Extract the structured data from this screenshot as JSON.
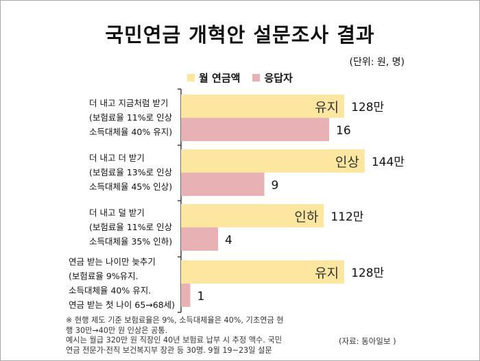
{
  "title": "국민연금 개혁안 설문조사 결과",
  "unit_note": "(단위: 원, 명)",
  "colors": {
    "pension": "#fde6a0",
    "respondents": "#e8b2b4",
    "axis": "#333333"
  },
  "legend": [
    {
      "label": "월 연금액",
      "color": "#fde6a0"
    },
    {
      "label": "응답자",
      "color": "#e8b2b4"
    }
  ],
  "chart_data": {
    "type": "bar",
    "orientation": "horizontal",
    "categories": [
      [
        "더 내고 지금처럼 받기",
        "(보험료율 11%로 인상",
        "소득대체율 40% 유지)"
      ],
      [
        "더 내고 더 받기",
        "(보험료율 13%로 인상",
        "소득대체율 45% 인상)"
      ],
      [
        "더 내고 덜 받기",
        "(보험료율 11%로 인상",
        "소득대체율 35% 인하)"
      ],
      [
        "연금 받는 나이만 늦추기",
        "(보험료율 9%유지.",
        "소득대체율 40% 유지.",
        "연금 받는 첫 나이 65→68세)"
      ]
    ],
    "series": [
      {
        "name": "월 연금액",
        "values": [
          128,
          144,
          112,
          128
        ],
        "value_labels": [
          "128만",
          "144만",
          "112만",
          "128만"
        ],
        "bar_text": [
          "유지",
          "인상",
          "인하",
          "유지"
        ]
      },
      {
        "name": "응답자",
        "values": [
          16,
          9,
          4,
          1
        ],
        "value_labels": [
          "16",
          "9",
          "4",
          "1"
        ]
      }
    ],
    "legend_position": "top",
    "grid": false
  },
  "footnote": [
    "※ 현행 제도 기준 보험료율은 9%, 소득대체율은 40%, 기초연금 현",
    "행 30만→40만 원 인상은 공통.",
    " 예시는 월급 320만 원 직장인 40년 보험료 납부 시 추정 액수. 국민",
    "연금 전문가·전직 보건복지부 장관 등 30명. 9월 19~23일 설문"
  ],
  "source": "(자료: 동아일보 )"
}
